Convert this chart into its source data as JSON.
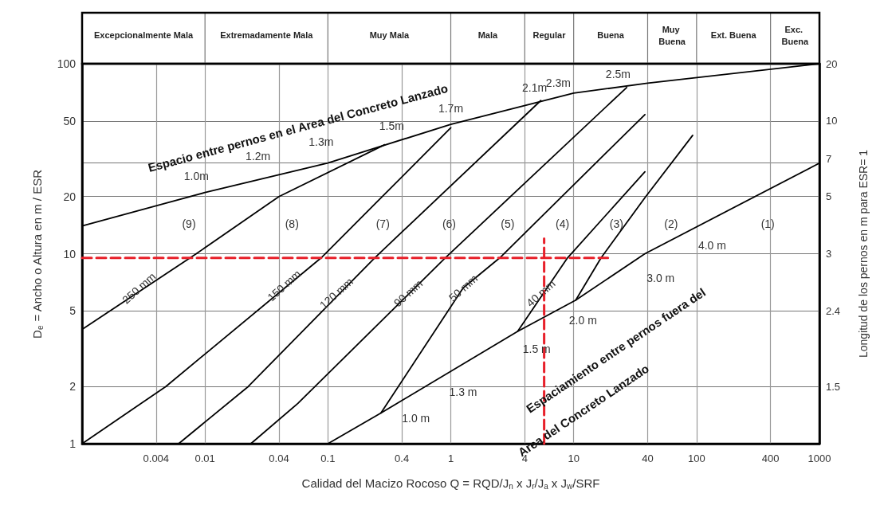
{
  "chart_data": {
    "type": "line",
    "xlabel": "Calidad del Macizo Rocoso Q = RQD/J$_{n}$ x J$_{r}$/J$_{a}$ x J$_{w}$/SRF",
    "ylabel": "D$_{e}$ = Ancho o Altura en m / ESR",
    "y2label": "Longitud de los pernos en m para ESR= 1",
    "log": "xy",
    "grid": true,
    "marker": "none",
    "line_style": "solid",
    "xlim": [
      0.001,
      1000
    ],
    "xticks": [
      0.004,
      0.01,
      0.04,
      0.1,
      0.4,
      1,
      4,
      10,
      40,
      100,
      400,
      1000
    ],
    "ylim": [
      1,
      100
    ],
    "yticks": [
      1,
      2,
      5,
      10,
      20,
      {
        "value": 30,
        "label": null
      },
      50,
      100
    ],
    "y2_categories": [
      "20",
      null,
      null,
      "10",
      null,
      "7",
      null,
      "5",
      null,
      null,
      "3",
      null,
      null,
      "2.4",
      null,
      null,
      null,
      "1.5",
      null,
      null,
      null
    ],
    "series": [
      {
        "color": "#000000",
        "x": [
          0.001,
          0.01,
          0.1,
          1,
          10,
          40,
          1000
        ],
        "values": [
          14,
          21,
          30,
          48,
          70,
          79,
          100
        ]
      },
      {
        "color": "#000000",
        "x": [
          0.001,
          0.0085,
          0.04,
          0.29
        ],
        "values": [
          4,
          10,
          20,
          37.5
        ]
      },
      {
        "color": "#000000",
        "x": [
          0.001,
          0.0048,
          0.088,
          1
        ],
        "values": [
          1,
          2,
          9.5,
          46
        ]
      },
      {
        "color": "#000000",
        "x": [
          0.0061,
          0.0225,
          0.24,
          5.4
        ],
        "values": [
          1,
          2,
          9.5,
          64
        ]
      },
      {
        "color": "#000000",
        "x": [
          0.0236,
          0.057,
          0.9,
          27
        ],
        "values": [
          1,
          1.63,
          9.5,
          75
        ]
      },
      {
        "color": "#000000",
        "x": [
          0.27,
          1.26,
          2.5,
          38
        ],
        "values": [
          1.45,
          6.6,
          9.5,
          54
        ]
      },
      {
        "color": "#000000",
        "x": [
          3.5,
          8.9,
          38
        ],
        "values": [
          3.9,
          9.5,
          27
        ]
      },
      {
        "color": "#000000",
        "x": [
          10.4,
          16.7,
          38.6,
          93
        ],
        "values": [
          5.7,
          9.5,
          20,
          42
        ]
      },
      {
        "color": "#000000",
        "x": [
          0.1,
          0.27,
          3.5,
          10.4,
          38,
          1000
        ],
        "values": [
          1,
          1.45,
          3.9,
          5.7,
          10,
          30
        ]
      },
      {
        "color": "#e8202a",
        "line_style": "dashed",
        "x": [
          0.001,
          19
        ],
        "values": [
          9.5,
          9.5
        ]
      },
      {
        "color": "#e8202a",
        "line_style": "dashed",
        "x": [
          5.75,
          5.75
        ],
        "values": [
          1,
          12
        ]
      }
    ],
    "annotations": [
      "Espacio entre pernos en el Area del Concreto Lanzado",
      "Espaciamiento entre pernos fuera del",
      "Area del Concreto Lanzado",
      "1.0m",
      "1.2m",
      "1.3m",
      "1.5m",
      "1.7m",
      "2.1m",
      "2.3m",
      "2.5m",
      "1.0 m",
      "1.3 m",
      "1.5 m",
      "2.0 m",
      "3.0 m",
      "4.0 m",
      {
        "text": "250 mm",
        "x": 0.0029,
        "y": 6.6
      },
      {
        "text": "150 mm",
        "x": 0.044,
        "y": 6.8
      },
      {
        "text": "120 mm",
        "x": 0.117,
        "y": 6.2
      },
      {
        "text": "90 mm",
        "x": 0.45,
        "y": 6.2
      },
      {
        "text": "50 mm",
        "x": 1.26,
        "y": 6.6
      },
      {
        "text": "40 mm",
        "x": 5.4,
        "y": 6.2
      },
      "(9)",
      "(8)",
      "(7)",
      "(6)",
      "(5)",
      "(4)",
      "(3)",
      "(2)",
      "(1)",
      "Excepcionalmente Mala",
      "Extremadamente Mala",
      "Muy Mala",
      "Mala",
      "Regular",
      "Buena",
      "Muy Buena",
      "Ext. Buena",
      "Exc. Buena"
    ]
  }
}
